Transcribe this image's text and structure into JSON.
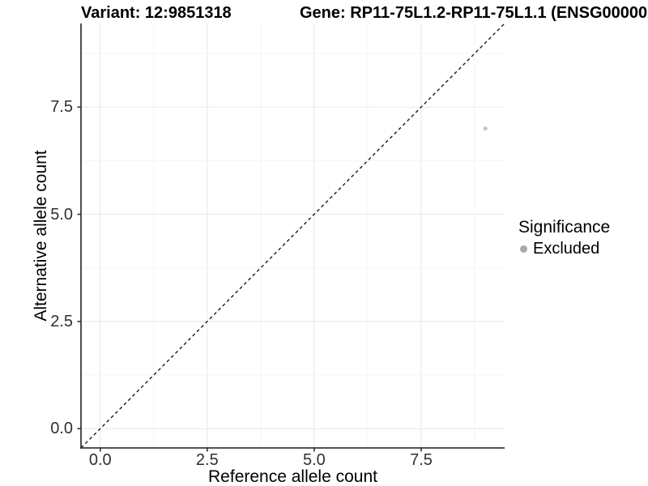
{
  "header": {
    "variant_title": "Variant: 12:9851318",
    "gene_title": "Gene: RP11-75L1.2-RP11-75L1.1 (ENSG00000"
  },
  "chart_data": {
    "type": "scatter",
    "xlabel": "Reference allele count",
    "ylabel": "Alternative allele count",
    "xlim": [
      -0.45,
      9.45
    ],
    "ylim": [
      -0.45,
      9.45
    ],
    "x_ticks": [
      0.0,
      2.5,
      5.0,
      7.5
    ],
    "y_ticks": [
      0.0,
      2.5,
      5.0,
      7.5
    ],
    "x_tick_labels": [
      "0.0",
      "2.5",
      "5.0",
      "7.5"
    ],
    "y_tick_labels": [
      "0.0",
      "2.5",
      "5.0",
      "7.5"
    ],
    "minor_x_ticks": [
      1.25,
      3.75,
      6.25,
      8.75
    ],
    "minor_y_ticks": [
      1.25,
      3.75,
      6.25,
      8.75
    ],
    "grid": true,
    "reference_line": {
      "type": "identity-diagonal",
      "style": "dashed",
      "from": [
        -0.45,
        -0.45
      ],
      "to": [
        9.45,
        9.45
      ],
      "color": "#1a1a1a"
    },
    "series": [
      {
        "name": "Excluded",
        "color": "#c7c7c7",
        "points": [
          {
            "x": 9,
            "y": 7
          }
        ]
      }
    ],
    "legend": {
      "title": "Significance",
      "position": "right",
      "items": [
        {
          "label": "Excluded",
          "color": "#a9a9a9"
        }
      ]
    }
  },
  "colors": {
    "background": "#ffffff",
    "grid_major": "#ebebeb",
    "grid_minor": "#f5f5f5",
    "axis_line": "#3a3a3a",
    "tick_mark": "#333333",
    "tick_text": "#303030",
    "point": "#c7c7c7",
    "legend_key": "#a9a9a9",
    "reference_line": "#1a1a1a"
  }
}
